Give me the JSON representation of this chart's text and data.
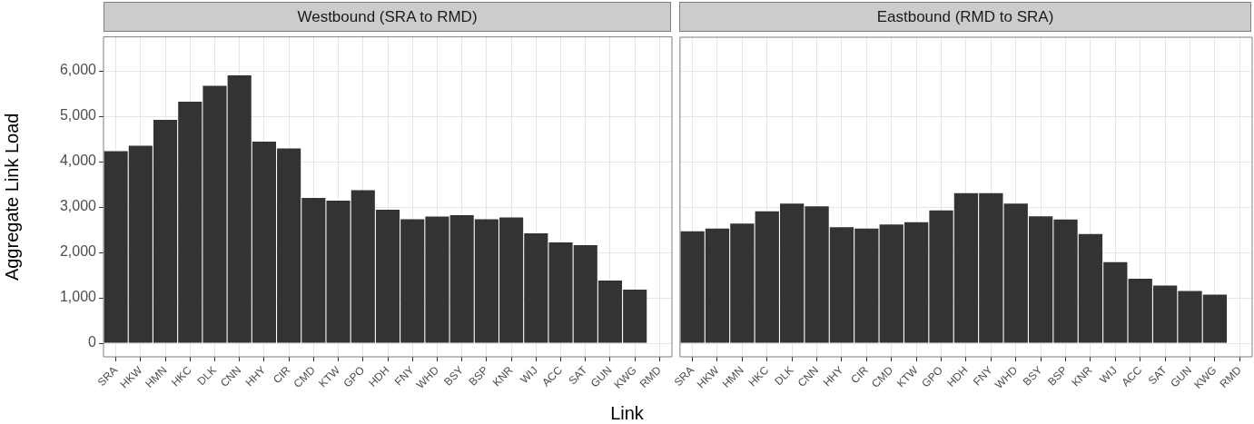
{
  "chart_data": [
    {
      "type": "bar",
      "title": "Westbound (SRA to RMD)",
      "xlabel": "Link",
      "ylabel": "Aggregate Link Load",
      "categories": [
        "SRA",
        "HKW",
        "HMN",
        "HKC",
        "DLK",
        "CNN",
        "HHY",
        "CIR",
        "CMD",
        "KTW",
        "GPO",
        "HDH",
        "FNY",
        "WHD",
        "BSY",
        "BSP",
        "KNR",
        "WIJ",
        "ACC",
        "SAT",
        "GUN",
        "KWG",
        "RMD"
      ],
      "series": [
        {
          "color": "#333333",
          "values": [
            4230,
            4350,
            4920,
            5320,
            5670,
            5900,
            4440,
            4290,
            3200,
            3140,
            3370,
            2940,
            2730,
            2790,
            2820,
            2730,
            2770,
            2420,
            2220,
            2160,
            1380,
            1180,
            null
          ]
        }
      ],
      "ylim": [
        -300,
        6750
      ],
      "yticks": [
        0,
        {
          "value": 1000,
          "label": "1,000"
        },
        {
          "value": 2000,
          "label": "2,000"
        },
        {
          "value": 3000,
          "label": "3,000"
        },
        {
          "value": 4000,
          "label": "4,000"
        },
        {
          "value": 5000,
          "label": "5,000"
        },
        {
          "value": 6000,
          "label": "6,000"
        }
      ],
      "grid": true
    },
    {
      "type": "bar",
      "title": "Eastbound (RMD to SRA)",
      "categories": [
        "SRA",
        "HKW",
        "HMN",
        "HKC",
        "DLK",
        "CNN",
        "HHY",
        "CIR",
        "CMD",
        "KTW",
        "GPO",
        "HDH",
        "FNY",
        "WHD",
        "BSY",
        "BSP",
        "KNR",
        "WIJ",
        "ACC",
        "SAT",
        "GUN",
        "KWG",
        "RMD"
      ],
      "series": [
        {
          "color": "#333333",
          "values": [
            2470,
            2530,
            2640,
            2910,
            3080,
            3020,
            2560,
            2530,
            2620,
            2670,
            2930,
            3310,
            3310,
            3080,
            2800,
            2730,
            2410,
            1790,
            1420,
            1270,
            1150,
            1070,
            null
          ]
        }
      ],
      "ylim": [
        -300,
        6750
      ],
      "yticks": [
        0,
        1000,
        2000,
        3000,
        4000,
        5000,
        6000
      ],
      "grid": true,
      "tick_labels": "x"
    }
  ]
}
